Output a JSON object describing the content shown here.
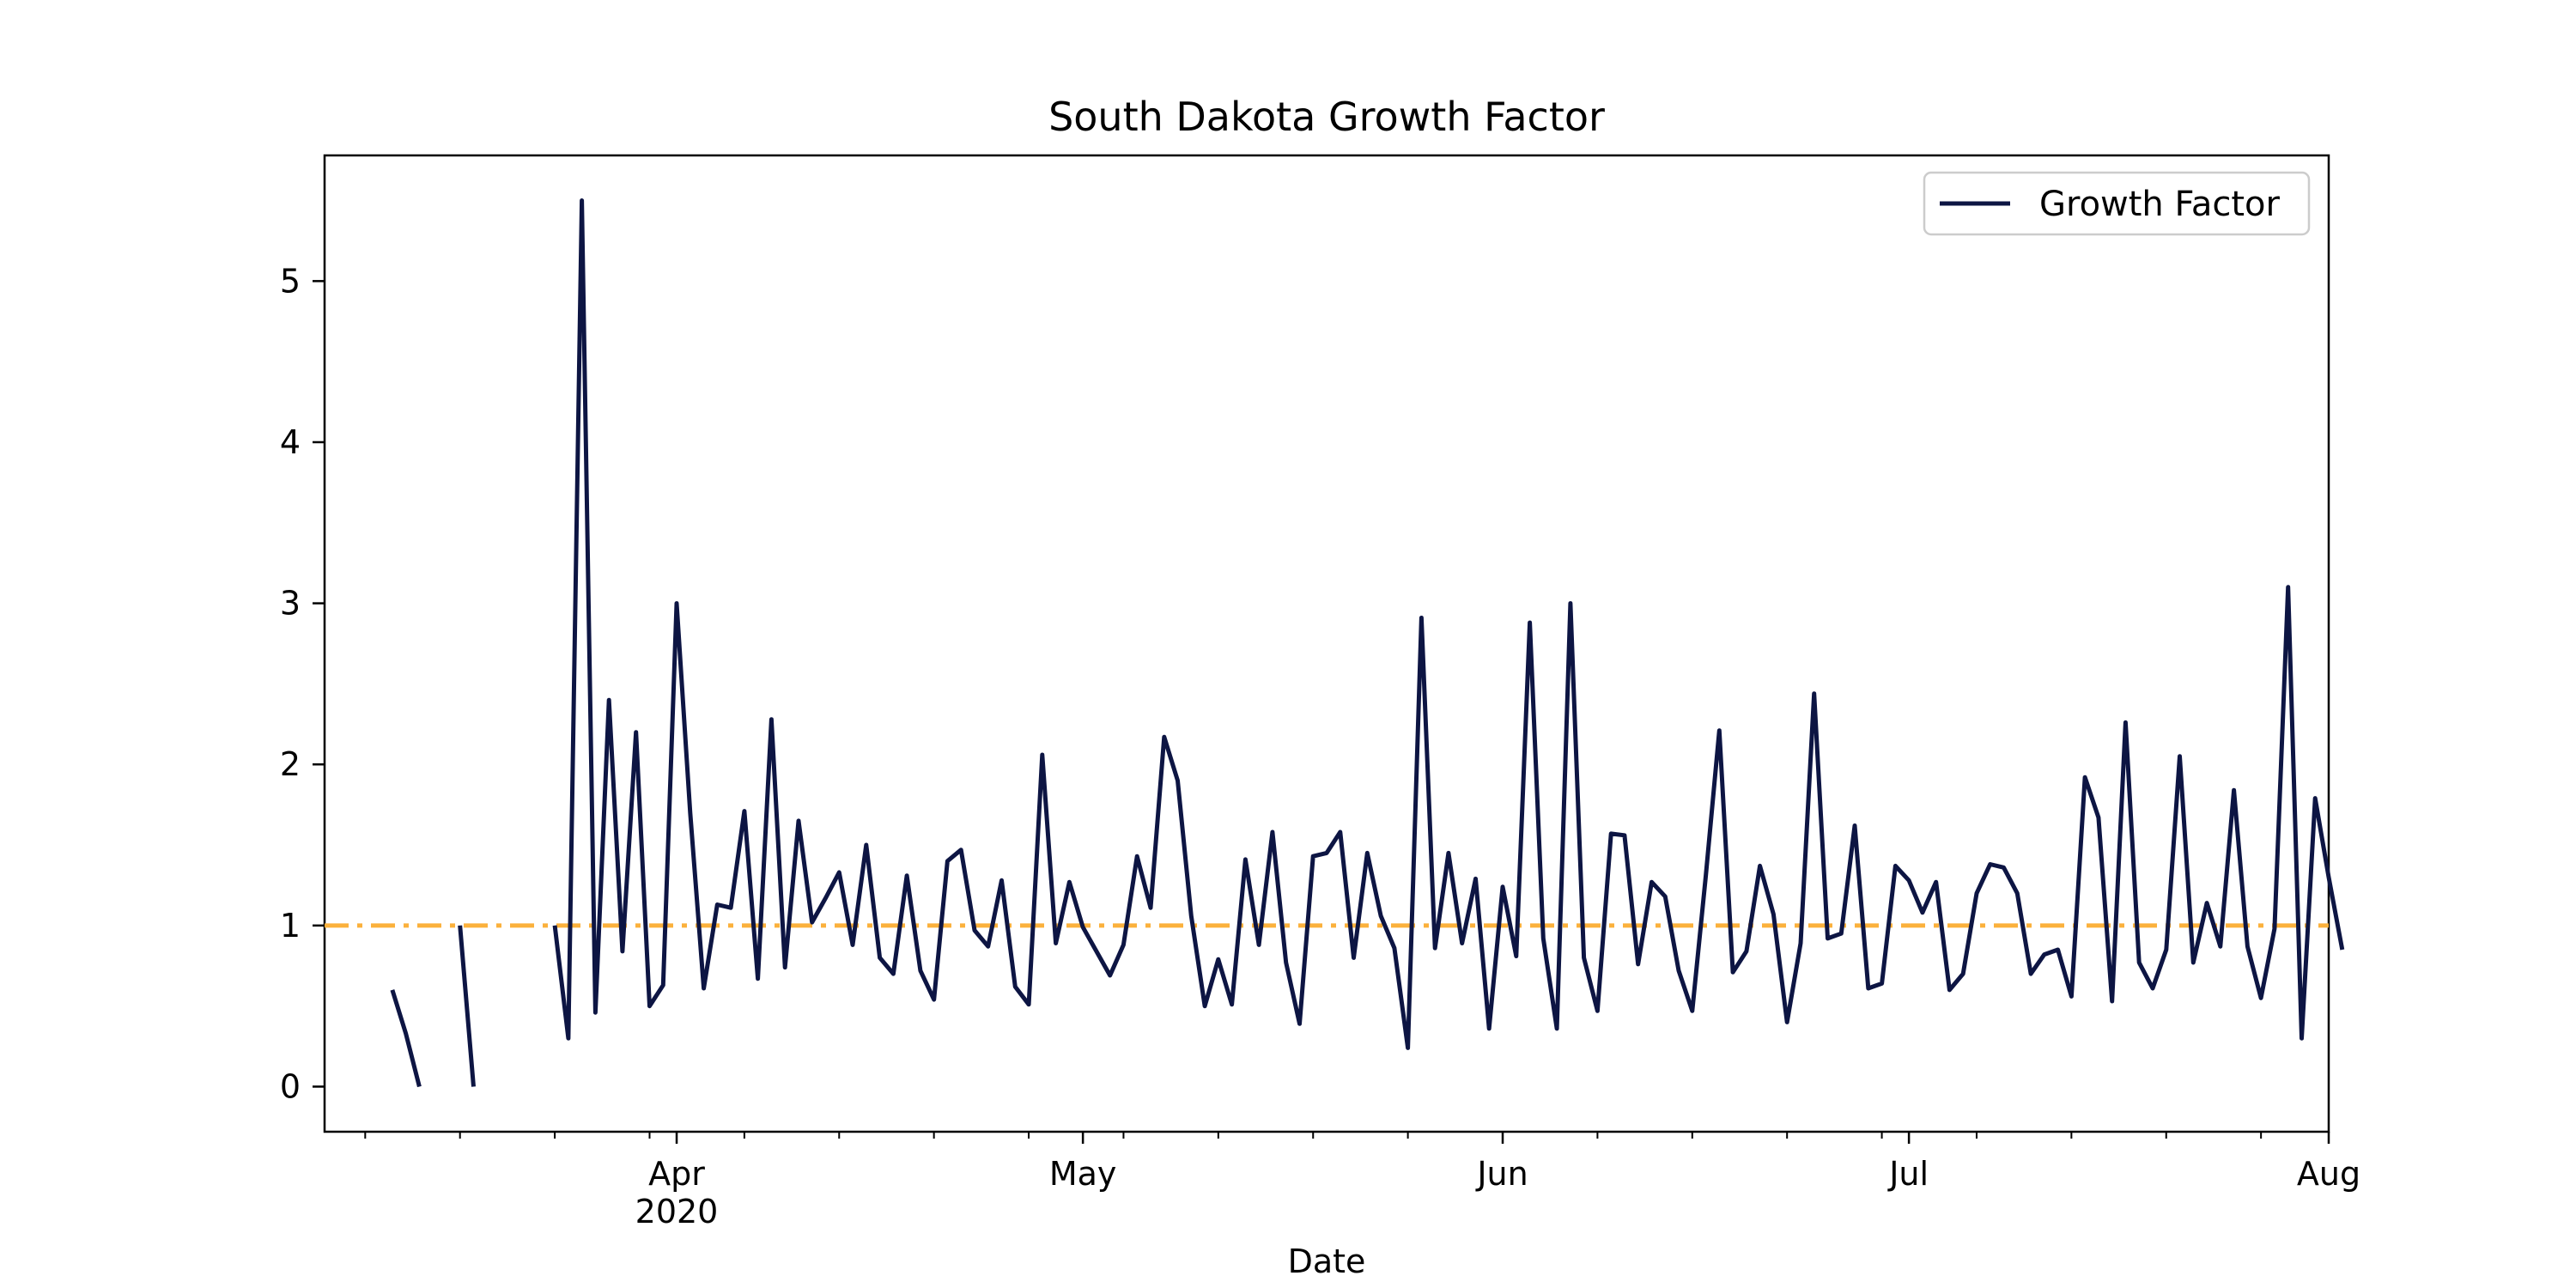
{
  "chart_data": {
    "type": "line",
    "title": "South Dakota Growth Factor",
    "xlabel": "Date",
    "ylabel": "",
    "xlim": [
      "2020-03-06",
      "2020-08-01"
    ],
    "ylim": [
      -0.28,
      5.78
    ],
    "yticks": [
      0,
      1,
      2,
      3,
      4,
      5
    ],
    "xticks": [
      {
        "date": "2020-04-01",
        "label": "Apr",
        "sublabel": "2020"
      },
      {
        "date": "2020-05-01",
        "label": "May",
        "sublabel": ""
      },
      {
        "date": "2020-06-01",
        "label": "Jun",
        "sublabel": ""
      },
      {
        "date": "2020-07-01",
        "label": "Jul",
        "sublabel": ""
      },
      {
        "date": "2020-08-01",
        "label": "Aug",
        "sublabel": ""
      }
    ],
    "legend": {
      "position": "top-right",
      "entries": [
        "Growth Factor"
      ]
    },
    "grid": false,
    "colors": {
      "series": "#0d1543",
      "reference": "#fbb13c"
    },
    "reference_line": {
      "y": 1,
      "style": "dash-dot"
    },
    "series": [
      {
        "name": "Growth Factor",
        "start": "2020-03-11",
        "values": [
          0.6,
          0.33,
          0.0,
          null,
          null,
          1.0,
          0.0,
          null,
          null,
          null,
          null,
          null,
          1.0,
          0.3,
          5.5,
          0.46,
          2.4,
          0.84,
          2.2,
          0.5,
          0.63,
          3.0,
          1.7,
          0.61,
          1.13,
          1.11,
          1.71,
          0.67,
          2.28,
          0.74,
          1.65,
          1.02,
          1.17,
          1.33,
          0.88,
          1.5,
          0.8,
          0.7,
          1.31,
          0.72,
          0.54,
          1.4,
          1.47,
          0.97,
          0.87,
          1.28,
          0.62,
          0.51,
          2.06,
          0.89,
          1.27,
          0.99,
          0.84,
          0.69,
          0.88,
          1.43,
          1.11,
          2.17,
          1.9,
          1.06,
          0.5,
          0.79,
          0.51,
          1.41,
          0.88,
          1.58,
          0.77,
          0.39,
          1.43,
          1.45,
          1.58,
          0.8,
          1.45,
          1.06,
          0.86,
          0.24,
          2.91,
          0.86,
          1.45,
          0.89,
          1.29,
          0.36,
          1.24,
          0.81,
          2.88,
          0.92,
          0.36,
          3.0,
          0.8,
          0.47,
          1.57,
          1.56,
          0.76,
          1.27,
          1.18,
          0.72,
          0.47,
          1.31,
          2.21,
          0.71,
          0.84,
          1.37,
          1.07,
          0.4,
          0.89,
          2.44,
          0.92,
          0.95,
          1.62,
          0.61,
          0.64,
          1.37,
          1.28,
          1.08,
          1.27,
          0.6,
          0.7,
          1.2,
          1.38,
          1.36,
          1.2,
          0.7,
          0.82,
          0.85,
          0.56,
          1.92,
          1.67,
          0.53,
          2.26,
          0.77,
          0.61,
          0.85,
          2.05,
          0.77,
          1.14,
          0.87,
          1.84,
          0.87,
          0.55,
          0.98,
          3.1,
          0.3,
          1.79,
          1.3,
          0.85
        ]
      }
    ]
  }
}
